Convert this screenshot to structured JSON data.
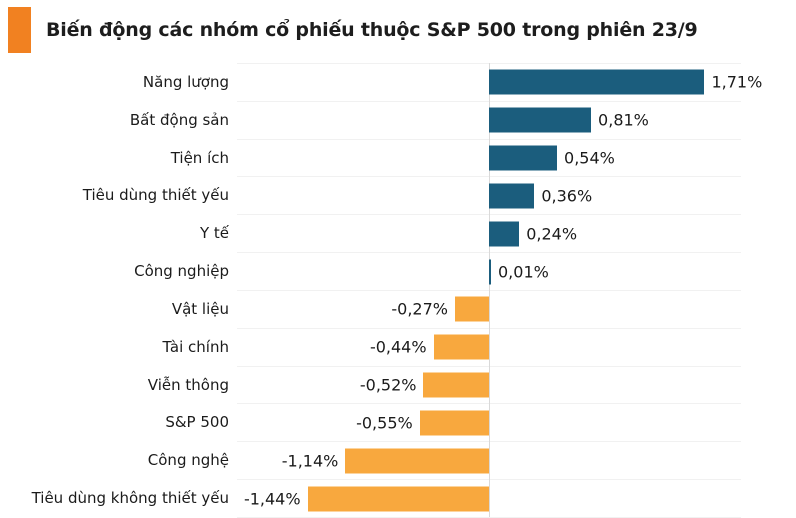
{
  "header": {
    "title": "Biến động các nhóm cổ phiếu thuộc S&P 500 trong phiên 23/9",
    "bullet_color": "#f18121"
  },
  "chart_data": {
    "type": "bar",
    "orientation": "horizontal",
    "title": "Biến động các nhóm cổ phiếu thuộc S&P 500 trong phiên 23/9",
    "categories": [
      "Năng lượng",
      "Bất động sản",
      "Tiện ích",
      "Tiêu dùng thiết yếu",
      "Y tế",
      "Công nghiệp",
      "Vật liệu",
      "Tài chính",
      "Viễn thông",
      "S&P 500",
      "Công nghệ",
      "Tiêu dùng không thiết yếu"
    ],
    "values": [
      1.71,
      0.81,
      0.54,
      0.36,
      0.24,
      0.01,
      -0.27,
      -0.44,
      -0.52,
      -0.55,
      -1.14,
      -1.44
    ],
    "value_labels": [
      "1,71%",
      "0,81%",
      "0,54%",
      "0,36%",
      "0,24%",
      "0,01%",
      "-0,27%",
      "-0,44%",
      "-0,52%",
      "-0,55%",
      "-1,14%",
      "-1,44%"
    ],
    "unit": "%",
    "xlim": [
      -2,
      2
    ],
    "grid": true,
    "legend": false,
    "colors": {
      "positive": "#1b5d7d",
      "negative": "#f8a83e",
      "grid": "#f1f1f1",
      "axis": "#d9d9d9",
      "text": "#1b1b1b"
    }
  }
}
